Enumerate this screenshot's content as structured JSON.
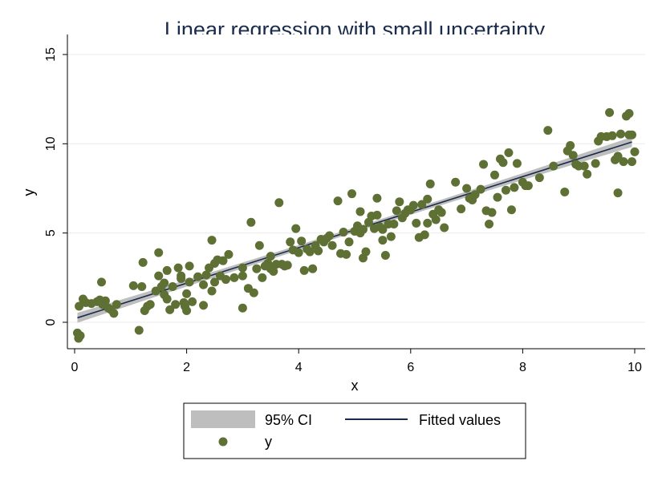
{
  "chart_data": {
    "type": "scatter",
    "title": "Linear regression with small uncertainty",
    "xlabel": "x",
    "ylabel": "y",
    "xlim": [
      0,
      10
    ],
    "ylim": [
      -1,
      15
    ],
    "xticks": [
      "0",
      "2",
      "4",
      "6",
      "8",
      "10"
    ],
    "yticks": [
      "0",
      "5",
      "10",
      "15"
    ],
    "grid": "horizontal",
    "legend_position": "bottom",
    "colors": {
      "points": "#5e7034",
      "line": "#1a2b4c",
      "ci_band": "#bebebe",
      "grid": "#ebebeb"
    },
    "fit": {
      "intercept": 0.2,
      "slope": 0.995,
      "x_range": [
        0.05,
        9.95
      ]
    },
    "ci": {
      "name": "95% CI",
      "half_width_ends": 0.28,
      "half_width_mid": 0.14
    },
    "series": [
      {
        "name": "y",
        "kind": "scatter",
        "points": [
          [
            0.05,
            -0.6
          ],
          [
            0.07,
            -0.9
          ],
          [
            0.1,
            -0.75
          ],
          [
            0.08,
            0.9
          ],
          [
            0.15,
            1.3
          ],
          [
            0.2,
            1.1
          ],
          [
            0.3,
            1.05
          ],
          [
            0.4,
            1.15
          ],
          [
            0.45,
            1.25
          ],
          [
            0.48,
            2.25
          ],
          [
            0.5,
            1.0
          ],
          [
            0.55,
            1.2
          ],
          [
            0.6,
            0.8
          ],
          [
            0.65,
            0.7
          ],
          [
            0.7,
            0.5
          ],
          [
            0.75,
            1.0
          ],
          [
            1.05,
            2.05
          ],
          [
            1.15,
            -0.45
          ],
          [
            1.2,
            2.0
          ],
          [
            1.22,
            3.35
          ],
          [
            1.25,
            0.65
          ],
          [
            1.3,
            0.9
          ],
          [
            1.35,
            1.0
          ],
          [
            1.45,
            1.75
          ],
          [
            1.5,
            3.9
          ],
          [
            1.5,
            2.6
          ],
          [
            1.55,
            2.0
          ],
          [
            1.6,
            2.2
          ],
          [
            1.6,
            1.55
          ],
          [
            1.65,
            1.3
          ],
          [
            1.65,
            2.9
          ],
          [
            1.7,
            0.7
          ],
          [
            1.75,
            2.0
          ],
          [
            1.8,
            1.0
          ],
          [
            1.85,
            3.05
          ],
          [
            1.9,
            2.6
          ],
          [
            1.9,
            2.45
          ],
          [
            1.95,
            1.1
          ],
          [
            1.97,
            0.9
          ],
          [
            2.0,
            1.6
          ],
          [
            2.0,
            0.65
          ],
          [
            2.05,
            3.15
          ],
          [
            2.05,
            2.25
          ],
          [
            2.1,
            1.15
          ],
          [
            2.2,
            2.55
          ],
          [
            2.3,
            2.1
          ],
          [
            2.3,
            0.95
          ],
          [
            2.35,
            2.65
          ],
          [
            2.4,
            3.05
          ],
          [
            2.45,
            4.6
          ],
          [
            2.45,
            1.75
          ],
          [
            2.5,
            2.25
          ],
          [
            2.5,
            3.3
          ],
          [
            2.55,
            3.5
          ],
          [
            2.6,
            2.6
          ],
          [
            2.65,
            3.45
          ],
          [
            2.7,
            2.4
          ],
          [
            2.75,
            3.8
          ],
          [
            2.85,
            2.5
          ],
          [
            3.0,
            3.05
          ],
          [
            3.0,
            2.6
          ],
          [
            3.0,
            0.8
          ],
          [
            3.1,
            1.9
          ],
          [
            3.15,
            5.6
          ],
          [
            3.2,
            1.65
          ],
          [
            3.25,
            3.0
          ],
          [
            3.3,
            4.3
          ],
          [
            3.35,
            2.5
          ],
          [
            3.4,
            3.15
          ],
          [
            3.45,
            3.3
          ],
          [
            3.5,
            3.7
          ],
          [
            3.5,
            3.0
          ],
          [
            3.55,
            2.85
          ],
          [
            3.6,
            3.25
          ],
          [
            3.65,
            6.7
          ],
          [
            3.7,
            3.25
          ],
          [
            3.75,
            3.15
          ],
          [
            3.8,
            3.2
          ],
          [
            3.85,
            4.5
          ],
          [
            3.9,
            4.05
          ],
          [
            3.95,
            5.25
          ],
          [
            4.0,
            3.9
          ],
          [
            4.05,
            4.55
          ],
          [
            4.1,
            2.9
          ],
          [
            4.15,
            4.1
          ],
          [
            4.2,
            3.95
          ],
          [
            4.25,
            3.0
          ],
          [
            4.3,
            4.3
          ],
          [
            4.35,
            4.0
          ],
          [
            4.4,
            4.65
          ],
          [
            4.45,
            4.5
          ],
          [
            4.5,
            4.7
          ],
          [
            4.55,
            4.85
          ],
          [
            4.6,
            4.3
          ],
          [
            4.7,
            6.8
          ],
          [
            4.75,
            3.85
          ],
          [
            4.8,
            5.05
          ],
          [
            4.85,
            3.8
          ],
          [
            4.9,
            4.5
          ],
          [
            4.95,
            7.2
          ],
          [
            5.0,
            5.1
          ],
          [
            5.05,
            5.4
          ],
          [
            5.1,
            5.0
          ],
          [
            5.1,
            6.2
          ],
          [
            5.15,
            5.2
          ],
          [
            5.15,
            3.6
          ],
          [
            5.2,
            3.95
          ],
          [
            5.25,
            5.6
          ],
          [
            5.3,
            5.95
          ],
          [
            5.35,
            5.25
          ],
          [
            5.4,
            6.95
          ],
          [
            5.4,
            6.0
          ],
          [
            5.45,
            5.35
          ],
          [
            5.5,
            5.2
          ],
          [
            5.5,
            4.6
          ],
          [
            5.55,
            3.75
          ],
          [
            5.6,
            5.5
          ],
          [
            5.65,
            4.8
          ],
          [
            5.7,
            5.5
          ],
          [
            5.75,
            6.25
          ],
          [
            5.8,
            6.75
          ],
          [
            5.85,
            5.85
          ],
          [
            5.9,
            6.1
          ],
          [
            5.95,
            6.3
          ],
          [
            6.0,
            6.3
          ],
          [
            6.05,
            6.55
          ],
          [
            6.1,
            5.55
          ],
          [
            6.15,
            4.75
          ],
          [
            6.2,
            6.6
          ],
          [
            6.25,
            4.9
          ],
          [
            6.3,
            5.55
          ],
          [
            6.3,
            6.9
          ],
          [
            6.35,
            7.75
          ],
          [
            6.4,
            6.05
          ],
          [
            6.45,
            5.75
          ],
          [
            6.5,
            6.3
          ],
          [
            6.55,
            6.15
          ],
          [
            6.6,
            5.3
          ],
          [
            6.8,
            7.85
          ],
          [
            6.9,
            6.35
          ],
          [
            7.0,
            7.5
          ],
          [
            7.05,
            6.95
          ],
          [
            7.1,
            6.85
          ],
          [
            7.15,
            7.15
          ],
          [
            7.25,
            7.45
          ],
          [
            7.3,
            8.85
          ],
          [
            7.35,
            6.25
          ],
          [
            7.4,
            5.5
          ],
          [
            7.45,
            6.15
          ],
          [
            7.5,
            8.25
          ],
          [
            7.55,
            7.0
          ],
          [
            7.6,
            9.15
          ],
          [
            7.65,
            8.95
          ],
          [
            7.7,
            7.4
          ],
          [
            7.75,
            9.5
          ],
          [
            7.8,
            6.3
          ],
          [
            7.85,
            7.55
          ],
          [
            7.9,
            8.9
          ],
          [
            8.0,
            7.85
          ],
          [
            8.05,
            7.65
          ],
          [
            8.1,
            7.65
          ],
          [
            8.3,
            8.1
          ],
          [
            8.45,
            10.75
          ],
          [
            8.55,
            8.75
          ],
          [
            8.75,
            7.3
          ],
          [
            8.8,
            9.6
          ],
          [
            8.85,
            9.9
          ],
          [
            8.9,
            9.35
          ],
          [
            8.95,
            8.85
          ],
          [
            9.0,
            8.75
          ],
          [
            9.1,
            8.75
          ],
          [
            9.15,
            8.3
          ],
          [
            9.3,
            8.9
          ],
          [
            9.35,
            10.15
          ],
          [
            9.4,
            10.4
          ],
          [
            9.5,
            10.4
          ],
          [
            9.55,
            11.75
          ],
          [
            9.6,
            10.45
          ],
          [
            9.65,
            9.1
          ],
          [
            9.7,
            7.25
          ],
          [
            9.7,
            9.3
          ],
          [
            9.75,
            10.55
          ],
          [
            9.8,
            9.0
          ],
          [
            9.85,
            11.55
          ],
          [
            9.9,
            11.7
          ],
          [
            9.9,
            10.5
          ],
          [
            9.95,
            10.5
          ],
          [
            9.95,
            9.0
          ],
          [
            10.0,
            9.55
          ]
        ]
      },
      {
        "name": "Fitted values",
        "kind": "line"
      }
    ]
  }
}
